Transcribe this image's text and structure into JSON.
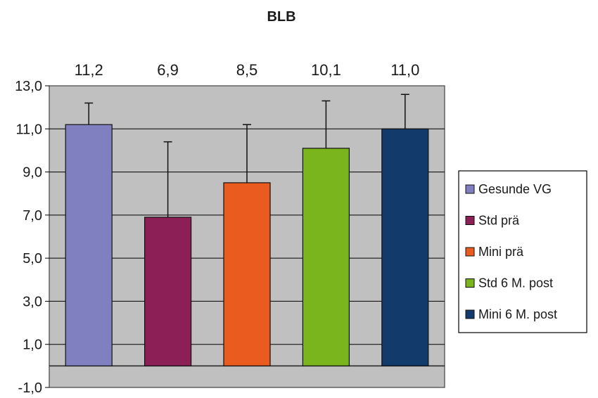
{
  "chart_data": {
    "type": "bar",
    "title": "BLB",
    "xlabel": "",
    "ylabel": "",
    "ylim": [
      -1.0,
      13.0
    ],
    "yticks": [
      "13,0",
      "11,0",
      "9,0",
      "7,0",
      "5,0",
      "3,0",
      "1,0",
      "-1,0"
    ],
    "ytick_values": [
      13,
      11,
      9,
      7,
      5,
      3,
      1,
      -1
    ],
    "grid": true,
    "legend_position": "right",
    "plot_background": "#c0c0c0",
    "series": [
      {
        "name": "Gesunde VG",
        "value": 11.2,
        "label": "11,2",
        "error": 1.0,
        "color": "#8080c0"
      },
      {
        "name": "Std prä",
        "value": 6.9,
        "label": "6,9",
        "error": 3.5,
        "color": "#8b1f56"
      },
      {
        "name": "Mini prä",
        "value": 8.5,
        "label": "8,5",
        "error": 2.7,
        "color": "#e95b1e"
      },
      {
        "name": "Std 6 M. post",
        "value": 10.1,
        "label": "10,1",
        "error": 2.2,
        "color": "#7ab51d"
      },
      {
        "name": "Mini 6 M. post",
        "value": 11.0,
        "label": "11,0",
        "error": 1.6,
        "color": "#123a6b"
      }
    ]
  }
}
